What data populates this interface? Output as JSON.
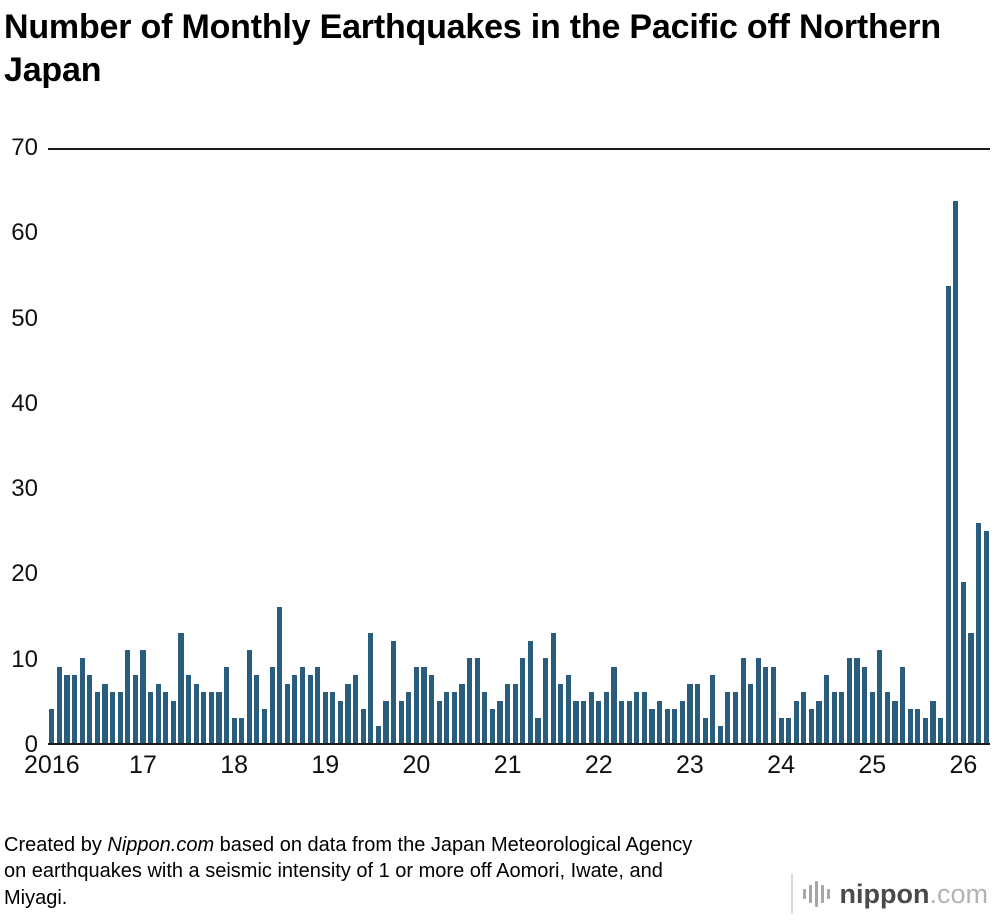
{
  "title": "Number of Monthly Earthquakes in the Pacific off Northern Japan",
  "credit": {
    "prefix": "Created by ",
    "brand": "Nippon.com",
    "suffix": " based on data from the Japan Meteorological Agency on earthquakes with a seismic intensity of 1 or more off Aomori, Iwate, and Miyagi."
  },
  "logo": {
    "name": "nippon",
    "tld": ".com",
    "icon": "sound-wave-icon"
  },
  "chart_data": {
    "type": "bar",
    "title": "Number of Monthly Earthquakes in the Pacific off Northern Japan",
    "xlabel": "",
    "ylabel": "",
    "ylim": [
      0,
      70
    ],
    "yticks": [
      0,
      10,
      20,
      30,
      40,
      50,
      60,
      70
    ],
    "grid": "top-and-bottom-rule-only",
    "legend": "none",
    "bar_color": "#2a5c7d",
    "x_unit": "month",
    "start_month": "2016-01",
    "end_month": "2026-04",
    "year_tick_labels": [
      "2016",
      "17",
      "18",
      "19",
      "20",
      "21",
      "22",
      "23",
      "24",
      "25",
      "26"
    ],
    "months_per_year": 12,
    "values": [
      4,
      9,
      8,
      8,
      10,
      8,
      6,
      7,
      6,
      6,
      11,
      8,
      11,
      6,
      7,
      6,
      5,
      13,
      8,
      7,
      6,
      6,
      6,
      9,
      3,
      3,
      11,
      8,
      4,
      9,
      16,
      7,
      8,
      9,
      8,
      9,
      6,
      6,
      5,
      7,
      8,
      4,
      13,
      2,
      5,
      12,
      5,
      6,
      9,
      9,
      8,
      5,
      6,
      6,
      7,
      10,
      10,
      6,
      4,
      5,
      7,
      7,
      10,
      12,
      3,
      10,
      13,
      7,
      8,
      5,
      5,
      6,
      5,
      6,
      9,
      5,
      5,
      6,
      6,
      4,
      5,
      4,
      4,
      5,
      7,
      7,
      3,
      8,
      2,
      6,
      6,
      10,
      7,
      10,
      9,
      9,
      3,
      3,
      5,
      6,
      4,
      5,
      8,
      6,
      6,
      10,
      10,
      9,
      6,
      11,
      6,
      5,
      9,
      4,
      4,
      3,
      5,
      3,
      54,
      64,
      19,
      13,
      26,
      25
    ]
  }
}
